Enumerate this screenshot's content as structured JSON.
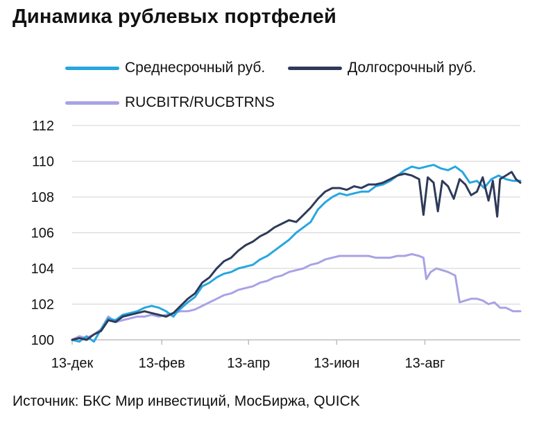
{
  "title": "Динамика рублевых портфелей",
  "source": "Источник: БКС Мир инвестиций, МосБиржа, QUICK",
  "chart_data": {
    "type": "line",
    "title": "Динамика рублевых портфелей",
    "xlabel": "",
    "ylabel": "",
    "x_tick_labels": [
      "13-дек",
      "13-фев",
      "13-апр",
      "13-июн",
      "13-авг"
    ],
    "x_ticks_t": [
      0,
      62,
      122,
      183,
      244
    ],
    "x_range_t": [
      0,
      310
    ],
    "y_ticks": [
      100,
      102,
      104,
      106,
      108,
      110,
      112
    ],
    "ylim": [
      100,
      112
    ],
    "grid": true,
    "legend_position": "top",
    "series": [
      {
        "name": "Среднесрочный руб.",
        "color": "#27A6E0",
        "points": [
          [
            0,
            100.0
          ],
          [
            5,
            99.9
          ],
          [
            10,
            100.2
          ],
          [
            15,
            99.9
          ],
          [
            20,
            100.6
          ],
          [
            25,
            101.2
          ],
          [
            30,
            101.1
          ],
          [
            35,
            101.4
          ],
          [
            40,
            101.5
          ],
          [
            45,
            101.6
          ],
          [
            50,
            101.8
          ],
          [
            55,
            101.9
          ],
          [
            60,
            101.8
          ],
          [
            65,
            101.6
          ],
          [
            70,
            101.3
          ],
          [
            73,
            101.6
          ],
          [
            80,
            102.1
          ],
          [
            85,
            102.4
          ],
          [
            90,
            103.0
          ],
          [
            95,
            103.2
          ],
          [
            100,
            103.5
          ],
          [
            105,
            103.7
          ],
          [
            110,
            103.8
          ],
          [
            115,
            104.0
          ],
          [
            120,
            104.1
          ],
          [
            125,
            104.2
          ],
          [
            130,
            104.5
          ],
          [
            135,
            104.7
          ],
          [
            140,
            105.0
          ],
          [
            145,
            105.3
          ],
          [
            150,
            105.6
          ],
          [
            155,
            106.0
          ],
          [
            160,
            106.3
          ],
          [
            165,
            106.6
          ],
          [
            170,
            107.3
          ],
          [
            175,
            107.7
          ],
          [
            180,
            108.0
          ],
          [
            185,
            108.2
          ],
          [
            190,
            108.1
          ],
          [
            195,
            108.2
          ],
          [
            200,
            108.3
          ],
          [
            205,
            108.3
          ],
          [
            210,
            108.6
          ],
          [
            215,
            108.7
          ],
          [
            220,
            108.9
          ],
          [
            225,
            109.2
          ],
          [
            230,
            109.5
          ],
          [
            235,
            109.7
          ],
          [
            240,
            109.6
          ],
          [
            245,
            109.7
          ],
          [
            250,
            109.8
          ],
          [
            255,
            109.6
          ],
          [
            260,
            109.5
          ],
          [
            265,
            109.7
          ],
          [
            270,
            109.4
          ],
          [
            275,
            108.8
          ],
          [
            280,
            108.9
          ],
          [
            285,
            108.5
          ],
          [
            290,
            109.0
          ],
          [
            295,
            109.2
          ],
          [
            300,
            109.0
          ],
          [
            305,
            108.9
          ],
          [
            310,
            108.9
          ]
        ]
      },
      {
        "name": "Долгосрочный руб.",
        "color": "#2E3A59",
        "points": [
          [
            0,
            100.0
          ],
          [
            5,
            100.1
          ],
          [
            10,
            100.0
          ],
          [
            15,
            100.3
          ],
          [
            20,
            100.5
          ],
          [
            25,
            101.1
          ],
          [
            30,
            101.0
          ],
          [
            35,
            101.3
          ],
          [
            40,
            101.4
          ],
          [
            45,
            101.5
          ],
          [
            50,
            101.6
          ],
          [
            55,
            101.5
          ],
          [
            60,
            101.4
          ],
          [
            65,
            101.3
          ],
          [
            70,
            101.5
          ],
          [
            75,
            101.9
          ],
          [
            80,
            102.3
          ],
          [
            85,
            102.6
          ],
          [
            90,
            103.2
          ],
          [
            95,
            103.5
          ],
          [
            100,
            104.0
          ],
          [
            105,
            104.4
          ],
          [
            110,
            104.6
          ],
          [
            115,
            105.0
          ],
          [
            120,
            105.3
          ],
          [
            125,
            105.5
          ],
          [
            130,
            105.8
          ],
          [
            135,
            106.0
          ],
          [
            140,
            106.3
          ],
          [
            145,
            106.5
          ],
          [
            150,
            106.7
          ],
          [
            155,
            106.6
          ],
          [
            160,
            107.0
          ],
          [
            165,
            107.4
          ],
          [
            170,
            107.9
          ],
          [
            175,
            108.3
          ],
          [
            180,
            108.5
          ],
          [
            185,
            108.5
          ],
          [
            190,
            108.4
          ],
          [
            195,
            108.6
          ],
          [
            200,
            108.5
          ],
          [
            205,
            108.7
          ],
          [
            210,
            108.7
          ],
          [
            215,
            108.8
          ],
          [
            220,
            109.0
          ],
          [
            225,
            109.2
          ],
          [
            230,
            109.3
          ],
          [
            235,
            109.2
          ],
          [
            240,
            109.0
          ],
          [
            243,
            107.0
          ],
          [
            246,
            109.1
          ],
          [
            250,
            108.8
          ],
          [
            253,
            107.2
          ],
          [
            256,
            108.9
          ],
          [
            260,
            108.6
          ],
          [
            264,
            107.9
          ],
          [
            268,
            109.0
          ],
          [
            272,
            108.7
          ],
          [
            276,
            108.1
          ],
          [
            280,
            108.3
          ],
          [
            284,
            109.1
          ],
          [
            288,
            107.8
          ],
          [
            291,
            108.9
          ],
          [
            294,
            106.9
          ],
          [
            296,
            109.0
          ],
          [
            300,
            109.2
          ],
          [
            304,
            109.4
          ],
          [
            307,
            109.0
          ],
          [
            310,
            108.8
          ]
        ]
      },
      {
        "name": "RUCBITR/RUCBTRNS",
        "color": "#A8A2E6",
        "points": [
          [
            0,
            100.0
          ],
          [
            5,
            100.2
          ],
          [
            10,
            100.1
          ],
          [
            15,
            100.3
          ],
          [
            20,
            100.6
          ],
          [
            25,
            101.3
          ],
          [
            30,
            101.0
          ],
          [
            35,
            101.1
          ],
          [
            40,
            101.2
          ],
          [
            45,
            101.3
          ],
          [
            50,
            101.3
          ],
          [
            55,
            101.4
          ],
          [
            60,
            101.3
          ],
          [
            65,
            101.4
          ],
          [
            70,
            101.5
          ],
          [
            75,
            101.6
          ],
          [
            80,
            101.6
          ],
          [
            85,
            101.7
          ],
          [
            90,
            101.9
          ],
          [
            95,
            102.1
          ],
          [
            100,
            102.3
          ],
          [
            105,
            102.5
          ],
          [
            110,
            102.6
          ],
          [
            115,
            102.8
          ],
          [
            120,
            102.9
          ],
          [
            125,
            103.0
          ],
          [
            130,
            103.2
          ],
          [
            135,
            103.3
          ],
          [
            140,
            103.5
          ],
          [
            145,
            103.6
          ],
          [
            150,
            103.8
          ],
          [
            155,
            103.9
          ],
          [
            160,
            104.0
          ],
          [
            165,
            104.2
          ],
          [
            170,
            104.3
          ],
          [
            175,
            104.5
          ],
          [
            180,
            104.6
          ],
          [
            185,
            104.7
          ],
          [
            190,
            104.7
          ],
          [
            195,
            104.7
          ],
          [
            200,
            104.7
          ],
          [
            205,
            104.7
          ],
          [
            210,
            104.6
          ],
          [
            215,
            104.6
          ],
          [
            220,
            104.6
          ],
          [
            225,
            104.7
          ],
          [
            230,
            104.7
          ],
          [
            235,
            104.8
          ],
          [
            240,
            104.7
          ],
          [
            243,
            104.6
          ],
          [
            245,
            103.4
          ],
          [
            248,
            103.8
          ],
          [
            252,
            104.0
          ],
          [
            256,
            103.9
          ],
          [
            260,
            103.8
          ],
          [
            265,
            103.6
          ],
          [
            268,
            102.1
          ],
          [
            272,
            102.2
          ],
          [
            276,
            102.3
          ],
          [
            280,
            102.3
          ],
          [
            284,
            102.2
          ],
          [
            288,
            102.0
          ],
          [
            292,
            102.1
          ],
          [
            296,
            101.8
          ],
          [
            300,
            101.8
          ],
          [
            305,
            101.6
          ],
          [
            310,
            101.6
          ]
        ]
      }
    ]
  }
}
